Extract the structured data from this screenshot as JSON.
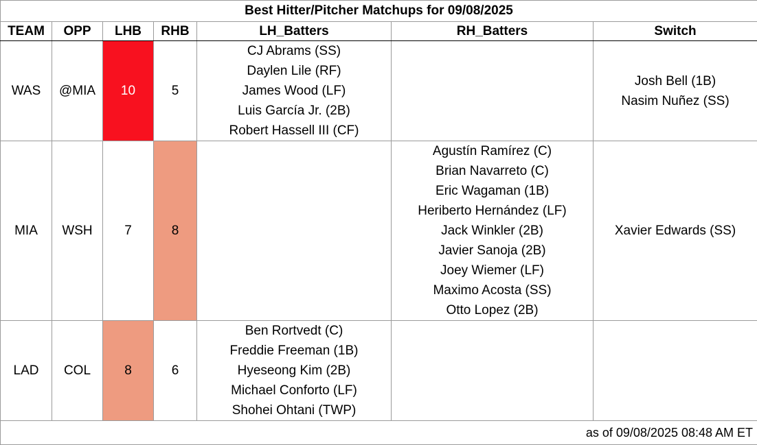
{
  "title": "Best Hitter/Pitcher Matchups for 09/08/2025",
  "headers": {
    "team": "TEAM",
    "opp": "OPP",
    "lhb": "LHB",
    "rhb": "RHB",
    "lh_batters": "LH_Batters",
    "rh_batters": "RH_Batters",
    "switch": "Switch"
  },
  "rows": [
    {
      "team": "WAS",
      "opp": "@MIA",
      "lhb": "10",
      "rhb": "5",
      "lh_batters": [
        "CJ Abrams (SS)",
        "Daylen Lile (RF)",
        "James Wood (LF)",
        "Luis García Jr. (2B)",
        "Robert Hassell III (CF)"
      ],
      "rh_batters": [],
      "switch": [
        "Josh Bell (1B)",
        "Nasim Nuñez (SS)"
      ]
    },
    {
      "team": "MIA",
      "opp": "WSH",
      "lhb": "7",
      "rhb": "8",
      "lh_batters": [],
      "rh_batters": [
        "Agustín Ramírez (C)",
        "Brian Navarreto (C)",
        "Eric Wagaman (1B)",
        "Heriberto Hernández (LF)",
        "Jack Winkler (2B)",
        "Javier Sanoja (2B)",
        "Joey Wiemer (LF)",
        "Maximo Acosta (SS)",
        "Otto Lopez (2B)"
      ],
      "switch": [
        "Xavier Edwards (SS)"
      ]
    },
    {
      "team": "LAD",
      "opp": "COL",
      "lhb": "8",
      "rhb": "6",
      "lh_batters": [
        "Ben Rortvedt (C)",
        "Freddie Freeman (1B)",
        "Hyeseong Kim (2B)",
        "Michael Conforto (LF)",
        "Shohei Ohtani (TWP)"
      ],
      "rh_batters": [],
      "switch": []
    }
  ],
  "colors": {
    "highlight_strong": "#f8111f",
    "highlight_mid": "#ee9b80"
  },
  "footer": "as of 09/08/2025 08:48 AM ET"
}
